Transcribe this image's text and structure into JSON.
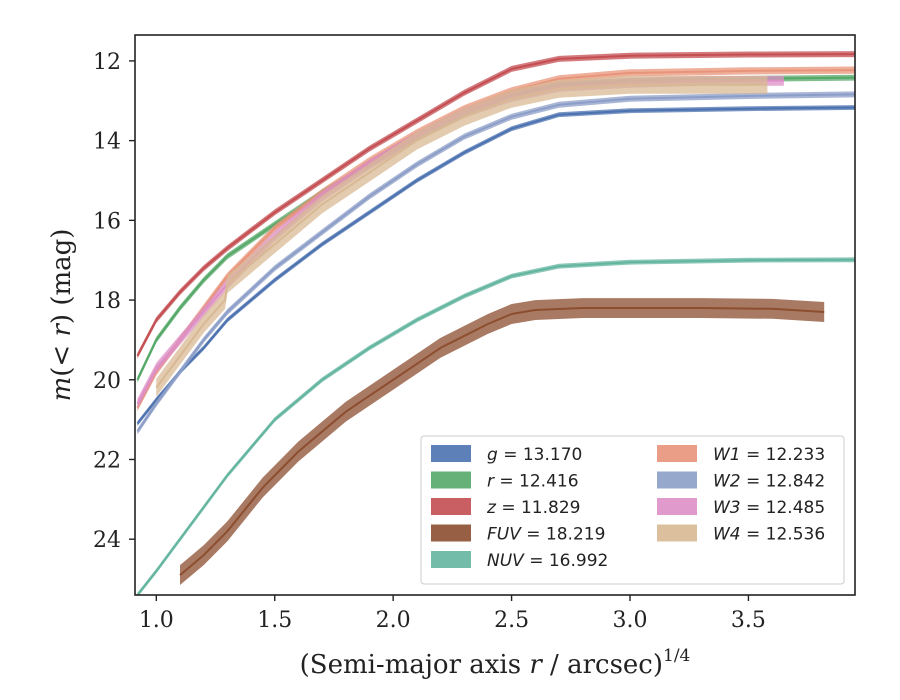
{
  "chart_data": {
    "type": "line",
    "xlabel": "(Semi-major axis r / arcsec)",
    "xlabel_main": "(Semi-major axis ",
    "xlabel_var": "r",
    "xlabel_tail": " / arcsec)",
    "xlabel_sup": "1/4",
    "ylabel": "m(< r) (mag)",
    "ylabel_var": "m",
    "ylabel_paren_open": "(",
    "ylabel_lt": "< r",
    "ylabel_tail": ") (mag)",
    "xlim": [
      0.91,
      3.95
    ],
    "ylim": [
      25.4,
      11.35
    ],
    "y_inverted": true,
    "xticks": [
      1.0,
      1.5,
      2.0,
      2.5,
      3.0,
      3.5
    ],
    "xtick_labels": [
      "1.0",
      "1.5",
      "2.0",
      "2.5",
      "3.0",
      "3.5"
    ],
    "yticks": [
      12,
      14,
      16,
      18,
      20,
      22,
      24
    ],
    "ytick_labels": [
      "12",
      "14",
      "16",
      "18",
      "20",
      "22",
      "24"
    ],
    "grid": false,
    "legend_position": "lower-right",
    "series": [
      {
        "name": "g",
        "label_value": "13.170",
        "color": "#4c72b0",
        "x": [
          0.92,
          1.0,
          1.1,
          1.2,
          1.3,
          1.5,
          1.7,
          1.9,
          2.1,
          2.3,
          2.5,
          2.7,
          3.0,
          3.5,
          3.95
        ],
        "y": [
          21.1,
          20.5,
          19.8,
          19.2,
          18.5,
          17.5,
          16.6,
          15.8,
          15.0,
          14.3,
          13.7,
          13.35,
          13.25,
          13.2,
          13.17
        ],
        "band": 0.12
      },
      {
        "name": "r",
        "label_value": "12.416",
        "color": "#55a868",
        "x": [
          0.92,
          1.0,
          1.1,
          1.2,
          1.3,
          1.5,
          1.7,
          1.9,
          2.1,
          2.3,
          2.5,
          2.7,
          3.0,
          3.5,
          3.95
        ],
        "y": [
          20.0,
          19.0,
          18.2,
          17.5,
          16.9,
          16.1,
          15.3,
          14.6,
          13.9,
          13.3,
          12.85,
          12.6,
          12.5,
          12.45,
          12.42
        ],
        "band": 0.15
      },
      {
        "name": "z",
        "label_value": "11.829",
        "color": "#c44e52",
        "x": [
          0.92,
          1.0,
          1.1,
          1.2,
          1.3,
          1.5,
          1.7,
          1.9,
          2.1,
          2.3,
          2.5,
          2.7,
          3.0,
          3.5,
          3.95
        ],
        "y": [
          19.4,
          18.5,
          17.8,
          17.2,
          16.7,
          15.8,
          15.0,
          14.2,
          13.5,
          12.8,
          12.2,
          11.95,
          11.87,
          11.84,
          11.83
        ],
        "band": 0.15
      },
      {
        "name": "FUV",
        "label_value": "18.219",
        "color": "#8c4e2f",
        "x": [
          1.1,
          1.2,
          1.3,
          1.45,
          1.6,
          1.8,
          2.0,
          2.2,
          2.4,
          2.5,
          2.6,
          2.8,
          3.0,
          3.3,
          3.6,
          3.82
        ],
        "y": [
          24.9,
          24.4,
          23.8,
          22.7,
          21.8,
          20.8,
          20.0,
          19.2,
          18.6,
          18.35,
          18.25,
          18.2,
          18.2,
          18.2,
          18.22,
          18.3
        ],
        "band": 0.5
      },
      {
        "name": "NUV",
        "label_value": "16.992",
        "color": "#64b5a0",
        "x": [
          0.92,
          1.0,
          1.1,
          1.2,
          1.3,
          1.5,
          1.7,
          1.9,
          2.1,
          2.3,
          2.5,
          2.7,
          3.0,
          3.5,
          3.95
        ],
        "y": [
          25.4,
          24.8,
          24.0,
          23.2,
          22.4,
          21.0,
          20.0,
          19.2,
          18.5,
          17.9,
          17.4,
          17.15,
          17.05,
          17.0,
          16.99
        ],
        "band": 0.12
      },
      {
        "name": "W1",
        "label_value": "12.233",
        "color": "#e8947a",
        "x": [
          0.92,
          1.0,
          1.1,
          1.2,
          1.3,
          1.5,
          1.7,
          1.9,
          2.1,
          2.3,
          2.5,
          2.7,
          3.0,
          3.5,
          3.95
        ],
        "y": [
          20.7,
          19.8,
          19.0,
          18.2,
          17.4,
          16.2,
          15.3,
          14.5,
          13.8,
          13.2,
          12.75,
          12.45,
          12.3,
          12.25,
          12.23
        ],
        "band": 0.18
      },
      {
        "name": "W2",
        "label_value": "12.842",
        "color": "#8c9ec8",
        "x": [
          0.92,
          1.0,
          1.1,
          1.2,
          1.3,
          1.5,
          1.7,
          1.9,
          2.1,
          2.3,
          2.5,
          2.7,
          3.0,
          3.5,
          3.95
        ],
        "y": [
          21.3,
          20.6,
          19.8,
          19.0,
          18.3,
          17.2,
          16.3,
          15.4,
          14.6,
          13.9,
          13.4,
          13.1,
          12.95,
          12.88,
          12.84
        ],
        "band": 0.15
      },
      {
        "name": "W3",
        "label_value": "12.485",
        "color": "#dd8fc6",
        "x": [
          0.92,
          1.0,
          1.1,
          1.2,
          1.3,
          1.5,
          1.7,
          1.9,
          2.1,
          2.3,
          2.5,
          2.7,
          3.0,
          3.3,
          3.55,
          3.65
        ],
        "y": [
          20.6,
          19.7,
          19.0,
          18.3,
          17.6,
          16.4,
          15.4,
          14.6,
          13.9,
          13.3,
          12.9,
          12.65,
          12.55,
          12.5,
          12.5,
          12.5
        ],
        "band": 0.25
      },
      {
        "name": "W4",
        "label_value": "12.536",
        "color": "#d8b994",
        "x": [
          1.0,
          1.1,
          1.2,
          1.29,
          1.3,
          1.5,
          1.7,
          1.9,
          2.1,
          2.3,
          2.5,
          2.7,
          3.0,
          3.3,
          3.58
        ],
        "y": [
          20.2,
          19.4,
          18.6,
          18.0,
          17.6,
          16.6,
          15.6,
          14.8,
          14.0,
          13.4,
          12.95,
          12.7,
          12.6,
          12.6,
          12.6
        ],
        "band": 0.45
      }
    ]
  }
}
